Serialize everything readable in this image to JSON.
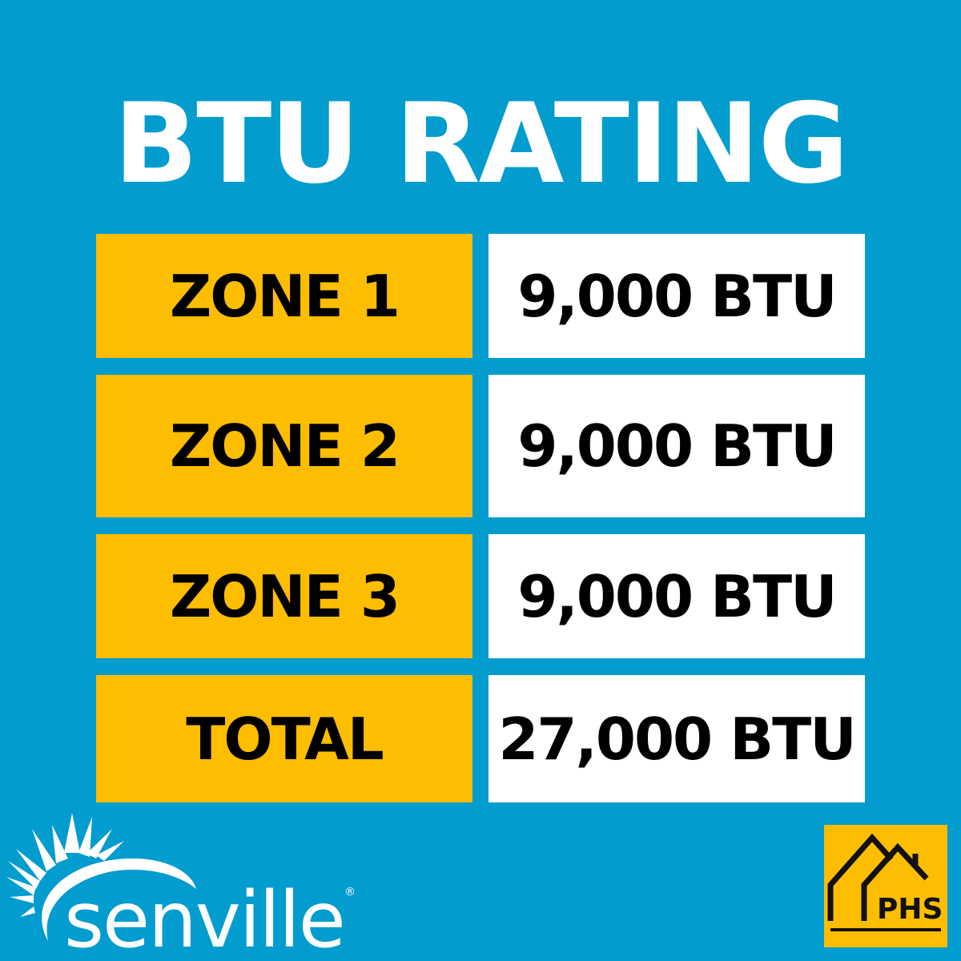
{
  "title": "BTU RATING",
  "rows": [
    {
      "label": "ZONE 1",
      "value": "9,000 BTU"
    },
    {
      "label": "ZONE 2",
      "value": "9,000 BTU"
    },
    {
      "label": "ZONE 3",
      "value": "9,000 BTU"
    },
    {
      "label": "TOTAL",
      "value": "27,000 BTU"
    }
  ],
  "logos": {
    "left": "senville",
    "right": "PHS"
  },
  "colors": {
    "background": "#029ccf",
    "label_fill": "#fdbd00",
    "value_fill": "#ffffff"
  }
}
